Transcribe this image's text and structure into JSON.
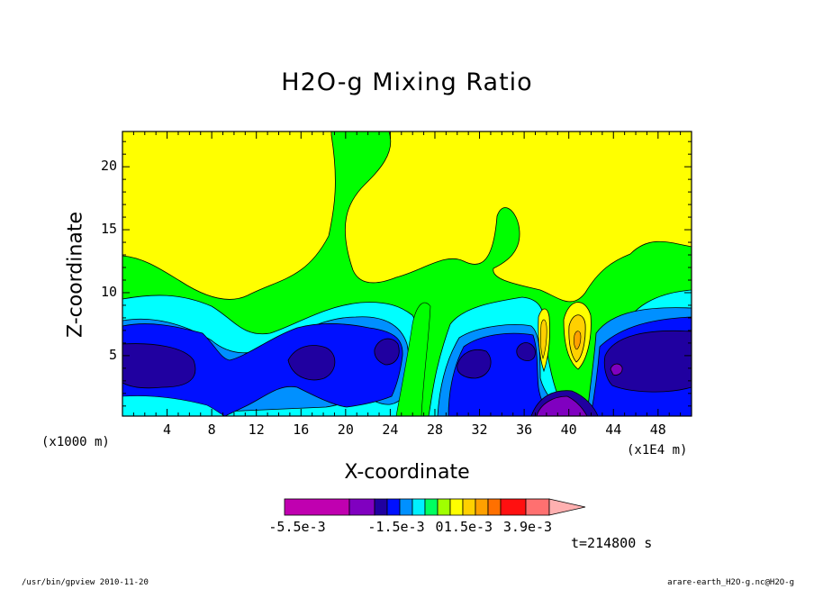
{
  "chart_data": {
    "type": "heatmap",
    "title": "H2O-g Mixing Ratio",
    "xlabel": "X-coordinate",
    "ylabel": "Z-coordinate",
    "x_unit_label": "(x1000 m)",
    "x_scale_label": "(x1E4 m)",
    "x_ticks": [
      4,
      8,
      12,
      16,
      20,
      24,
      28,
      32,
      36,
      40,
      44,
      48
    ],
    "y_ticks": [
      5,
      10,
      15,
      20
    ],
    "xlim": [
      0,
      51
    ],
    "ylim": [
      0.2,
      22.8
    ],
    "colorbar": {
      "colors": [
        "#c000b0",
        "#8000c0",
        "#2000a0",
        "#0010ff",
        "#0090ff",
        "#00f0ff",
        "#00ff60",
        "#a0ff00",
        "#ffff00",
        "#ffd000",
        "#ffa000",
        "#ff7000",
        "#ff1010",
        "#ff7070",
        "#ffb0b0"
      ],
      "labels": [
        "-5.5e-3",
        "-1.5e-3",
        "0",
        "1.5e-3",
        "3.9e-3"
      ]
    },
    "timestamp": "t=214800 s"
  },
  "footer": {
    "left": "/usr/bin/gpview  2010-11-20",
    "right": "arare-earth_H2O-g.nc@H2O-g"
  }
}
